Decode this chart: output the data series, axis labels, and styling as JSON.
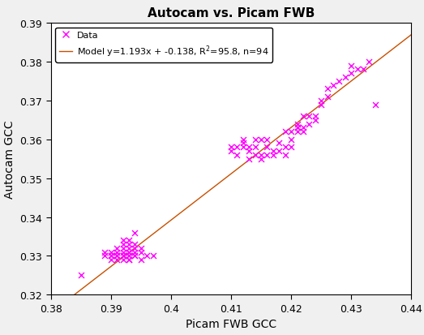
{
  "title": "Autocam vs. Picam FWB",
  "xlabel": "Picam FWB GCC",
  "ylabel": "Autocam GCC",
  "xlim": [
    0.38,
    0.44
  ],
  "ylim": [
    0.32,
    0.39
  ],
  "xticks": [
    0.38,
    0.39,
    0.4,
    0.41,
    0.42,
    0.43,
    0.44
  ],
  "yticks": [
    0.32,
    0.33,
    0.34,
    0.35,
    0.36,
    0.37,
    0.38,
    0.39
  ],
  "slope": 1.193,
  "intercept": -0.138,
  "r2": 95.8,
  "n": 94,
  "marker_color": "#FF00FF",
  "line_color": "#C85000",
  "background_color": "#f0f0f0",
  "plot_background": "#ffffff",
  "legend_label_data": "Data",
  "legend_label_model": "Model y=1.193x + -0.138, R$^2$=95.8, n=94",
  "title_fontsize": 11,
  "label_fontsize": 10,
  "tick_fontsize": 9,
  "legend_fontsize": 8,
  "x_data": [
    0.385,
    0.389,
    0.389,
    0.39,
    0.39,
    0.39,
    0.39,
    0.391,
    0.391,
    0.391,
    0.391,
    0.391,
    0.391,
    0.392,
    0.392,
    0.392,
    0.392,
    0.392,
    0.392,
    0.392,
    0.392,
    0.393,
    0.393,
    0.393,
    0.393,
    0.393,
    0.393,
    0.393,
    0.393,
    0.393,
    0.394,
    0.394,
    0.394,
    0.394,
    0.394,
    0.394,
    0.395,
    0.395,
    0.395,
    0.396,
    0.397,
    0.41,
    0.41,
    0.411,
    0.411,
    0.412,
    0.412,
    0.412,
    0.413,
    0.413,
    0.413,
    0.414,
    0.414,
    0.414,
    0.415,
    0.415,
    0.415,
    0.416,
    0.416,
    0.416,
    0.417,
    0.417,
    0.418,
    0.418,
    0.419,
    0.419,
    0.419,
    0.42,
    0.42,
    0.42,
    0.421,
    0.421,
    0.421,
    0.421,
    0.422,
    0.422,
    0.422,
    0.423,
    0.423,
    0.424,
    0.424,
    0.425,
    0.425,
    0.426,
    0.426,
    0.427,
    0.428,
    0.429,
    0.43,
    0.43,
    0.431,
    0.432,
    0.433,
    0.434
  ],
  "y_data": [
    0.325,
    0.331,
    0.33,
    0.329,
    0.33,
    0.33,
    0.331,
    0.329,
    0.33,
    0.33,
    0.33,
    0.331,
    0.332,
    0.329,
    0.33,
    0.33,
    0.33,
    0.331,
    0.332,
    0.333,
    0.334,
    0.329,
    0.329,
    0.33,
    0.33,
    0.331,
    0.331,
    0.332,
    0.333,
    0.334,
    0.33,
    0.33,
    0.331,
    0.332,
    0.333,
    0.336,
    0.329,
    0.331,
    0.332,
    0.33,
    0.33,
    0.357,
    0.358,
    0.356,
    0.358,
    0.358,
    0.359,
    0.36,
    0.355,
    0.357,
    0.358,
    0.356,
    0.358,
    0.36,
    0.355,
    0.356,
    0.36,
    0.356,
    0.358,
    0.36,
    0.356,
    0.357,
    0.357,
    0.359,
    0.356,
    0.358,
    0.362,
    0.358,
    0.36,
    0.362,
    0.362,
    0.363,
    0.363,
    0.364,
    0.362,
    0.363,
    0.366,
    0.364,
    0.366,
    0.365,
    0.366,
    0.369,
    0.37,
    0.371,
    0.373,
    0.374,
    0.375,
    0.376,
    0.377,
    0.379,
    0.378,
    0.378,
    0.38,
    0.369
  ]
}
